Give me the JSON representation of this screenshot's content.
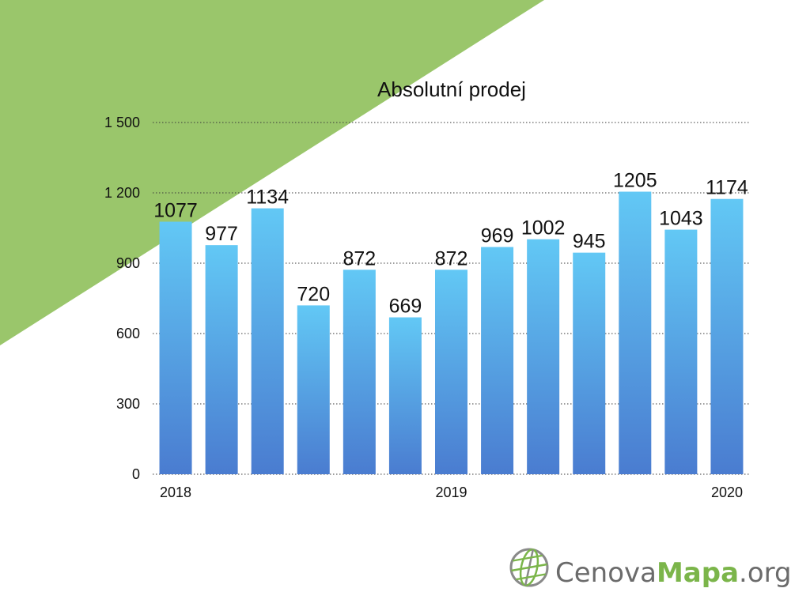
{
  "slide": {
    "background": "#ffffff",
    "accent_triangle_color": "#9ac66b"
  },
  "chart_data": {
    "type": "bar",
    "title": "Absolutní prodej",
    "categories": [
      "2018",
      "",
      "",
      "",
      "",
      "",
      "2019",
      "",
      "",
      "",
      "",
      "",
      "2020"
    ],
    "values": [
      1077,
      977,
      1134,
      720,
      872,
      669,
      872,
      969,
      1002,
      945,
      1205,
      1043,
      1174
    ],
    "ylim": [
      0,
      1500
    ],
    "yticks": [
      0,
      300,
      600,
      900,
      1200,
      1500
    ],
    "ytick_labels": [
      "0",
      "300",
      "600",
      "900",
      "1 200",
      "1 500"
    ],
    "grid": true,
    "grid_style": "dotted",
    "legend": "none",
    "data_labels": "above bars",
    "bar_color_top": "#62c8f5",
    "bar_color_bottom": "#4a7cd0",
    "text_color": "#111111"
  },
  "logo": {
    "icon": "globe-icon",
    "part1": "Cenova",
    "part2": "Mapa",
    "part3": ".org",
    "gray": "#6b6b6b",
    "green": "#7bb54a"
  }
}
